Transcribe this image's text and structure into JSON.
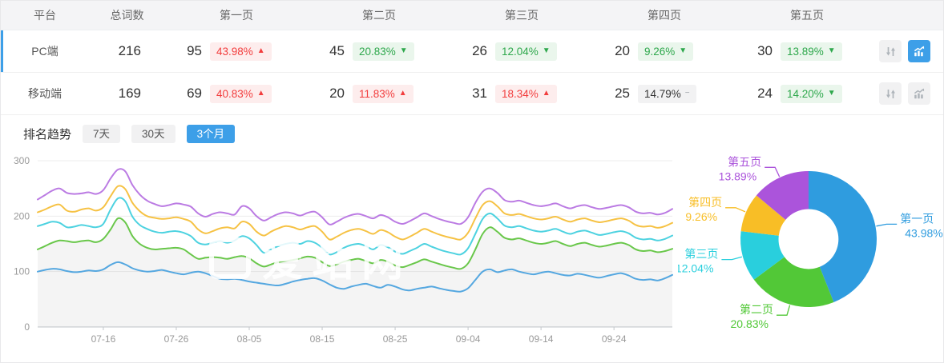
{
  "table": {
    "headers": [
      "平台",
      "总词数",
      "第一页",
      "第二页",
      "第三页",
      "第四页",
      "第五页"
    ],
    "rows": [
      {
        "platform": "PC端",
        "total": "216",
        "active": true,
        "chart_selected": true,
        "pages": [
          {
            "count": "95",
            "pct": "43.98%",
            "trend": "up"
          },
          {
            "count": "45",
            "pct": "20.83%",
            "trend": "down"
          },
          {
            "count": "26",
            "pct": "12.04%",
            "trend": "down"
          },
          {
            "count": "20",
            "pct": "9.26%",
            "trend": "down"
          },
          {
            "count": "30",
            "pct": "13.89%",
            "trend": "down"
          }
        ]
      },
      {
        "platform": "移动端",
        "total": "169",
        "active": false,
        "chart_selected": false,
        "pages": [
          {
            "count": "69",
            "pct": "40.83%",
            "trend": "up"
          },
          {
            "count": "20",
            "pct": "11.83%",
            "trend": "up"
          },
          {
            "count": "31",
            "pct": "18.34%",
            "trend": "up"
          },
          {
            "count": "25",
            "pct": "14.79%",
            "trend": "flat"
          },
          {
            "count": "24",
            "pct": "14.20%",
            "trend": "down"
          }
        ]
      }
    ]
  },
  "trend": {
    "label": "排名趋势",
    "tabs": [
      "7天",
      "30天",
      "3个月"
    ],
    "active_tab": "3个月"
  },
  "watermark": "爱站网",
  "icons": {
    "up": "▲",
    "down": "▼",
    "flat": "−",
    "sort_toggle": "updown-arrows-icon",
    "trend_toggle": "line-bar-chart-icon"
  },
  "colors": {
    "accent_blue": "#3d9fe8",
    "up_red": "#f23d3d",
    "up_red_bg": "#fdeded",
    "down_green": "#2ea84c",
    "down_green_bg": "#eaf6ec",
    "flat_bg": "#f2f2f3",
    "header_bg": "#f4f4f6",
    "area_fill": "rgba(0,0,0,0.045)"
  },
  "chart_data": [
    {
      "type": "line",
      "title": "排名趋势 3个月",
      "xlabel": "",
      "ylabel": "",
      "ylim": [
        0,
        300
      ],
      "y_ticks": [
        0,
        100,
        200,
        300
      ],
      "grid": true,
      "n_points": 88,
      "x_tick_labels": [
        "07-16",
        "07-26",
        "08-05",
        "08-15",
        "08-25",
        "09-04",
        "09-14",
        "09-24"
      ],
      "x_tick_indices": [
        9,
        19,
        29,
        39,
        49,
        59,
        69,
        79
      ],
      "area_fill_series": "第二页",
      "series": [
        {
          "name": "第五页",
          "color": "#bb7be3",
          "values": [
            230,
            238,
            246,
            250,
            242,
            240,
            241,
            243,
            240,
            247,
            268,
            284,
            281,
            256,
            239,
            228,
            222,
            218,
            220,
            223,
            221,
            217,
            205,
            199,
            204,
            207,
            205,
            203,
            218,
            214,
            200,
            192,
            198,
            204,
            207,
            205,
            201,
            206,
            208,
            198,
            185,
            190,
            197,
            202,
            204,
            200,
            196,
            202,
            198,
            190,
            186,
            191,
            198,
            205,
            200,
            195,
            191,
            188,
            186,
            198,
            224,
            244,
            250,
            242,
            229,
            226,
            228,
            224,
            220,
            218,
            220,
            223,
            218,
            214,
            218,
            220,
            216,
            213,
            215,
            218,
            220,
            216,
            208,
            205,
            206,
            203,
            206,
            213
          ]
        },
        {
          "name": "第四页",
          "color": "#f6c244",
          "values": [
            207,
            212,
            218,
            221,
            210,
            208,
            212,
            214,
            210,
            216,
            236,
            254,
            249,
            224,
            209,
            200,
            197,
            195,
            196,
            198,
            195,
            190,
            176,
            169,
            173,
            178,
            180,
            178,
            190,
            186,
            172,
            165,
            172,
            178,
            182,
            180,
            176,
            180,
            182,
            172,
            158,
            163,
            170,
            175,
            177,
            173,
            168,
            175,
            171,
            163,
            158,
            163,
            170,
            177,
            172,
            167,
            163,
            160,
            158,
            170,
            196,
            220,
            227,
            218,
            205,
            202,
            204,
            200,
            196,
            194,
            196,
            199,
            194,
            190,
            194,
            196,
            192,
            189,
            191,
            194,
            196,
            192,
            184,
            181,
            182,
            179,
            182,
            188
          ]
        },
        {
          "name": "第三页",
          "color": "#4dd2e0",
          "values": [
            182,
            186,
            190,
            188,
            180,
            181,
            184,
            182,
            180,
            186,
            212,
            232,
            227,
            199,
            184,
            177,
            172,
            170,
            172,
            173,
            170,
            164,
            152,
            149,
            152,
            155,
            152,
            156,
            164,
            160,
            148,
            134,
            140,
            146,
            150,
            152,
            150,
            155,
            152,
            143,
            131,
            135,
            143,
            148,
            150,
            146,
            140,
            148,
            144,
            136,
            132,
            137,
            143,
            150,
            145,
            140,
            136,
            133,
            131,
            142,
            168,
            195,
            205,
            196,
            183,
            180,
            182,
            178,
            174,
            172,
            174,
            177,
            172,
            168,
            172,
            174,
            170,
            166,
            168,
            171,
            173,
            169,
            161,
            158,
            159,
            156,
            159,
            165
          ]
        },
        {
          "name": "第二页",
          "color": "#69c74a",
          "values": [
            140,
            146,
            152,
            156,
            155,
            153,
            155,
            156,
            153,
            159,
            176,
            196,
            189,
            164,
            150,
            143,
            140,
            141,
            142,
            143,
            140,
            131,
            123,
            125,
            126,
            125,
            123,
            126,
            128,
            124,
            115,
            109,
            113,
            117,
            119,
            121,
            124,
            127,
            125,
            117,
            110,
            113,
            118,
            121,
            123,
            119,
            115,
            121,
            118,
            111,
            108,
            112,
            117,
            122,
            118,
            114,
            110,
            107,
            105,
            115,
            140,
            168,
            180,
            172,
            161,
            158,
            160,
            156,
            152,
            150,
            152,
            155,
            150,
            146,
            150,
            152,
            148,
            145,
            147,
            150,
            152,
            148,
            140,
            137,
            138,
            135,
            137,
            141
          ]
        },
        {
          "name": "第一页",
          "color": "#54a7e0",
          "values": [
            100,
            103,
            105,
            104,
            101,
            99,
            100,
            102,
            101,
            104,
            112,
            117,
            113,
            106,
            102,
            100,
            101,
            103,
            100,
            97,
            95,
            98,
            100,
            97,
            92,
            87,
            86,
            87,
            85,
            82,
            80,
            78,
            76,
            75,
            78,
            82,
            85,
            87,
            88,
            84,
            77,
            71,
            69,
            73,
            76,
            78,
            74,
            71,
            76,
            73,
            68,
            66,
            69,
            71,
            73,
            70,
            67,
            65,
            64,
            70,
            85,
            100,
            104,
            99,
            102,
            104,
            100,
            97,
            95,
            98,
            100,
            97,
            94,
            93,
            96,
            94,
            91,
            89,
            92,
            95,
            97,
            93,
            87,
            85,
            86,
            84,
            88,
            94
          ]
        }
      ]
    },
    {
      "type": "pie",
      "donut": true,
      "start_angle_deg": -90,
      "clockwise": true,
      "slices": [
        {
          "name": "第一页",
          "value": 43.98,
          "label": "43.98%",
          "color": "#2f9cdf"
        },
        {
          "name": "第二页",
          "value": 20.83,
          "label": "20.83%",
          "color": "#52c837"
        },
        {
          "name": "第三页",
          "value": 12.04,
          "label": "12.04%",
          "color": "#29cfdd"
        },
        {
          "name": "第四页",
          "value": 9.26,
          "label": "9.26%",
          "color": "#f8be26"
        },
        {
          "name": "第五页",
          "value": 13.89,
          "label": "13.89%",
          "color": "#ab54db"
        }
      ]
    }
  ]
}
